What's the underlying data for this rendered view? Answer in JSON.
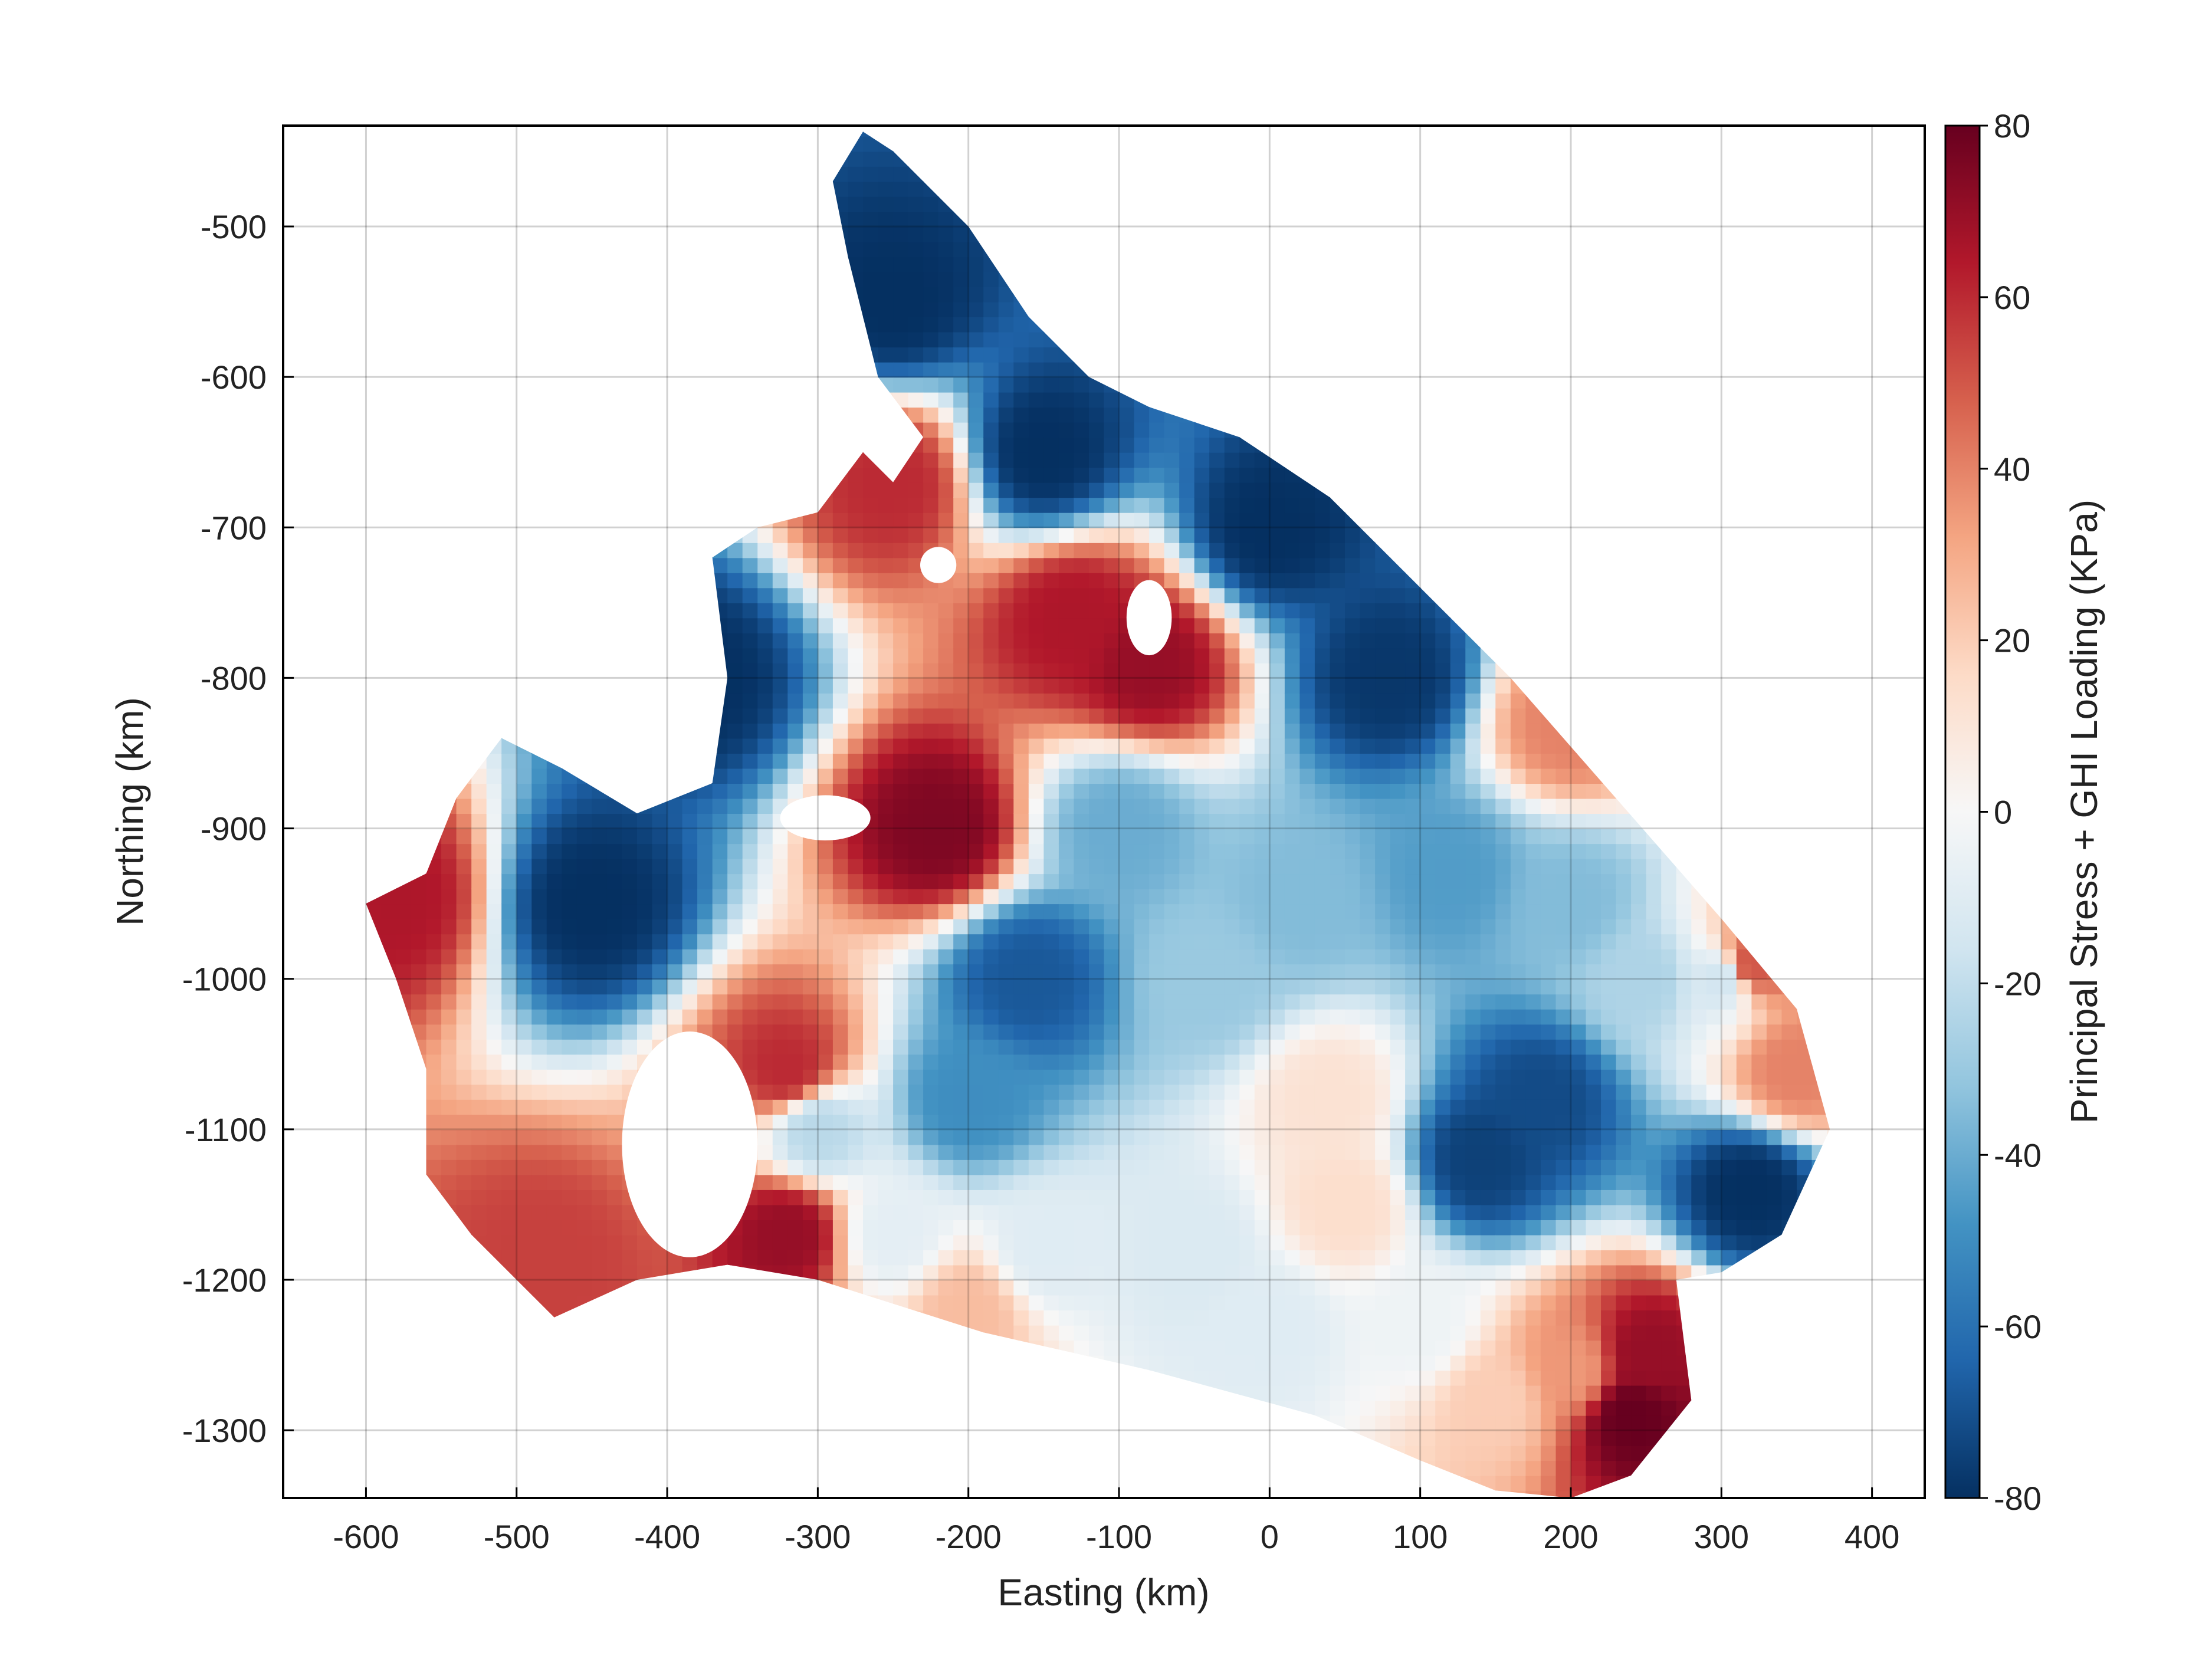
{
  "chart_data": {
    "type": "heatmap",
    "title": "",
    "xlabel": "Easting (km)",
    "ylabel": "Northing (km)",
    "colorbar_label": "Principal Stress + GHI Loading (KPa)",
    "xlim": [
      -655,
      435
    ],
    "ylim": [
      -1345,
      -433
    ],
    "xticks": [
      -600,
      -500,
      -400,
      -300,
      -200,
      -100,
      0,
      100,
      200,
      300,
      400
    ],
    "yticks": [
      -500,
      -600,
      -700,
      -800,
      -900,
      -1000,
      -1100,
      -1200,
      -1300
    ],
    "xtick_labels": [
      "-600",
      "-500",
      "-400",
      "-300",
      "-200",
      "-100",
      "0",
      "100",
      "200",
      "300",
      "400"
    ],
    "ytick_labels": [
      "-500",
      "-600",
      "-700",
      "-800",
      "-900",
      "-1000",
      "-1100",
      "-1200",
      "-1300"
    ],
    "colorbar_range": [
      -80,
      80
    ],
    "colorbar_ticks": [
      80,
      60,
      40,
      20,
      0,
      -20,
      -40,
      -60,
      -80
    ],
    "colorbar_tick_labels": [
      "80",
      "60",
      "40",
      "20",
      "0",
      "-20",
      "-40",
      "-60",
      "-80"
    ],
    "colormap": [
      "#053061",
      "#2166ac",
      "#4393c3",
      "#92c5de",
      "#d1e5f0",
      "#f7f7f7",
      "#fddbc7",
      "#f4a582",
      "#d6604d",
      "#b2182b",
      "#67001f"
    ],
    "grid": true,
    "domain_outline": [
      [
        -270,
        -437
      ],
      [
        -250,
        -450
      ],
      [
        -230,
        -470
      ],
      [
        -200,
        -500
      ],
      [
        -160,
        -560
      ],
      [
        -120,
        -600
      ],
      [
        -80,
        -620
      ],
      [
        -20,
        -640
      ],
      [
        40,
        -680
      ],
      [
        100,
        -740
      ],
      [
        160,
        -800
      ],
      [
        230,
        -880
      ],
      [
        300,
        -960
      ],
      [
        350,
        -1020
      ],
      [
        372,
        -1100
      ],
      [
        340,
        -1170
      ],
      [
        300,
        -1195
      ],
      [
        270,
        -1200
      ],
      [
        280,
        -1280
      ],
      [
        240,
        -1330
      ],
      [
        200,
        -1345
      ],
      [
        150,
        -1340
      ],
      [
        100,
        -1320
      ],
      [
        30,
        -1290
      ],
      [
        -80,
        -1260
      ],
      [
        -190,
        -1235
      ],
      [
        -300,
        -1200
      ],
      [
        -360,
        -1190
      ],
      [
        -420,
        -1200
      ],
      [
        -475,
        -1225
      ],
      [
        -530,
        -1170
      ],
      [
        -560,
        -1130
      ],
      [
        -560,
        -1060
      ],
      [
        -580,
        -1000
      ],
      [
        -600,
        -950
      ],
      [
        -560,
        -930
      ],
      [
        -540,
        -880
      ],
      [
        -510,
        -840
      ],
      [
        -470,
        -860
      ],
      [
        -420,
        -890
      ],
      [
        -370,
        -870
      ],
      [
        -360,
        -800
      ],
      [
        -370,
        -720
      ],
      [
        -340,
        -700
      ],
      [
        -300,
        -690
      ],
      [
        -270,
        -650
      ],
      [
        -250,
        -670
      ],
      [
        -230,
        -640
      ],
      [
        -260,
        -600
      ],
      [
        -280,
        -520
      ],
      [
        -290,
        -470
      ]
    ],
    "field_samples": [
      {
        "x": -450,
        "y": -950,
        "v": -80
      },
      {
        "x": -380,
        "y": -800,
        "v": -80
      },
      {
        "x": -250,
        "y": -550,
        "v": -80
      },
      {
        "x": -150,
        "y": -650,
        "v": -80
      },
      {
        "x": 0,
        "y": -700,
        "v": -80
      },
      {
        "x": 80,
        "y": -800,
        "v": -78
      },
      {
        "x": 320,
        "y": -1140,
        "v": -80
      },
      {
        "x": 180,
        "y": -1080,
        "v": -72
      },
      {
        "x": 140,
        "y": -1120,
        "v": -75
      },
      {
        "x": -160,
        "y": -1000,
        "v": -68
      },
      {
        "x": -200,
        "y": -1080,
        "v": -50
      },
      {
        "x": -100,
        "y": -900,
        "v": -40
      },
      {
        "x": -40,
        "y": -1000,
        "v": -30
      },
      {
        "x": 20,
        "y": -950,
        "v": -35
      },
      {
        "x": 120,
        "y": -930,
        "v": -45
      },
      {
        "x": 200,
        "y": -950,
        "v": -35
      },
      {
        "x": 250,
        "y": -1000,
        "v": -25
      },
      {
        "x": 300,
        "y": -1000,
        "v": -15
      },
      {
        "x": -300,
        "y": -1100,
        "v": -22
      },
      {
        "x": -250,
        "y": -1170,
        "v": -8
      },
      {
        "x": -150,
        "y": -1180,
        "v": -10
      },
      {
        "x": -50,
        "y": -1180,
        "v": -12
      },
      {
        "x": 40,
        "y": -1080,
        "v": 12
      },
      {
        "x": 50,
        "y": -1150,
        "v": 14
      },
      {
        "x": 0,
        "y": -1230,
        "v": -10
      },
      {
        "x": 100,
        "y": -1230,
        "v": -4
      },
      {
        "x": 150,
        "y": -1280,
        "v": 20
      },
      {
        "x": 200,
        "y": -1260,
        "v": 35
      },
      {
        "x": 240,
        "y": -1290,
        "v": 80
      },
      {
        "x": 250,
        "y": -1250,
        "v": 70
      },
      {
        "x": -220,
        "y": -900,
        "v": 75
      },
      {
        "x": -80,
        "y": -790,
        "v": 70
      },
      {
        "x": -130,
        "y": -760,
        "v": 65
      },
      {
        "x": -250,
        "y": -670,
        "v": 60
      },
      {
        "x": -320,
        "y": -1060,
        "v": 60
      },
      {
        "x": -320,
        "y": -1170,
        "v": 70
      },
      {
        "x": -480,
        "y": -1190,
        "v": 55
      },
      {
        "x": -580,
        "y": -945,
        "v": 65
      },
      {
        "x": 320,
        "y": -990,
        "v": 50
      },
      {
        "x": 350,
        "y": -1060,
        "v": 40
      },
      {
        "x": 200,
        "y": -830,
        "v": 40
      },
      {
        "x": -200,
        "y": -1220,
        "v": 25
      }
    ],
    "holes": [
      {
        "x": -385,
        "y": -1110,
        "rx": 45,
        "ry": 75
      },
      {
        "x": -295,
        "y": -893,
        "rx": 30,
        "ry": 15
      },
      {
        "x": -220,
        "y": -725,
        "rx": 12,
        "ry": 12
      },
      {
        "x": -80,
        "y": -760,
        "rx": 15,
        "ry": 25
      }
    ]
  }
}
